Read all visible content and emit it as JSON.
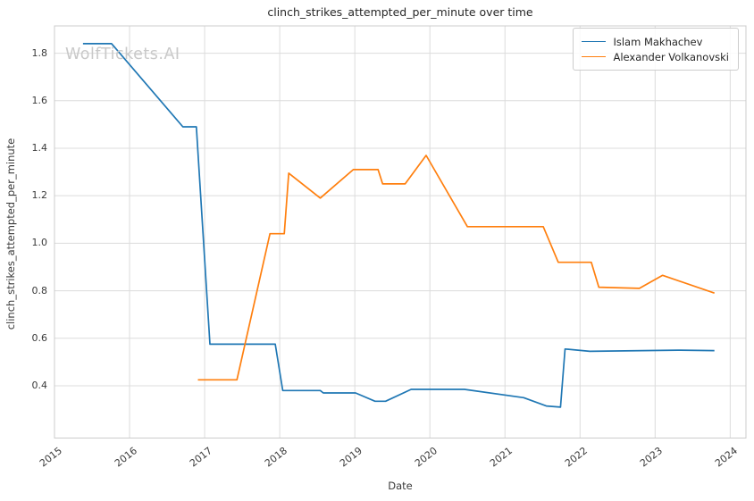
{
  "title": "clinch_strikes_attempted_per_minute over time",
  "watermark": "WolfTickets.AI",
  "colors": {
    "background": "#ffffff",
    "grid": "#dcdcdc",
    "spine": "#cccccc",
    "tick_text": "#3a3a3a",
    "title_text": "#262626",
    "watermark_text": "#c9c9c9",
    "series_blue": "#1f77b4",
    "series_orange": "#ff7f0e"
  },
  "chart_data": {
    "type": "line",
    "title": "clinch_strikes_attempted_per_minute over time",
    "xlabel": "Date",
    "ylabel": "clinch_strikes_attempted_per_minute",
    "grid": true,
    "legend_position": "upper right",
    "x_ticks": [
      "2015",
      "2016",
      "2017",
      "2018",
      "2019",
      "2020",
      "2021",
      "2022",
      "2023",
      "2024"
    ],
    "y_ticks": [
      "0.4",
      "0.6",
      "0.8",
      "1.0",
      "1.2",
      "1.4",
      "1.6",
      "1.8"
    ],
    "xlim": [
      2015.0,
      2024.21
    ],
    "ylim": [
      0.18,
      1.915
    ],
    "series": [
      {
        "name": "Islam Makhachev",
        "color": "#1f77b4",
        "points": [
          [
            2015.38,
            1.84
          ],
          [
            2015.76,
            1.84
          ],
          [
            2016.71,
            1.49
          ],
          [
            2016.89,
            1.49
          ],
          [
            2017.07,
            0.575
          ],
          [
            2017.94,
            0.575
          ],
          [
            2018.04,
            0.38
          ],
          [
            2018.54,
            0.38
          ],
          [
            2018.58,
            0.37
          ],
          [
            2019.01,
            0.37
          ],
          [
            2019.27,
            0.335
          ],
          [
            2019.41,
            0.335
          ],
          [
            2019.75,
            0.385
          ],
          [
            2020.46,
            0.385
          ],
          [
            2021.25,
            0.35
          ],
          [
            2021.55,
            0.315
          ],
          [
            2021.74,
            0.31
          ],
          [
            2021.8,
            0.555
          ],
          [
            2022.13,
            0.545
          ],
          [
            2023.3,
            0.55
          ],
          [
            2023.79,
            0.548
          ]
        ]
      },
      {
        "name": "Alexander Volkanovski",
        "color": "#ff7f0e",
        "points": [
          [
            2016.91,
            0.425
          ],
          [
            2017.43,
            0.425
          ],
          [
            2017.87,
            1.04
          ],
          [
            2018.06,
            1.04
          ],
          [
            2018.12,
            1.295
          ],
          [
            2018.54,
            1.19
          ],
          [
            2018.98,
            1.31
          ],
          [
            2019.31,
            1.31
          ],
          [
            2019.37,
            1.25
          ],
          [
            2019.67,
            1.25
          ],
          [
            2019.95,
            1.37
          ],
          [
            2020.5,
            1.07
          ],
          [
            2021.51,
            1.07
          ],
          [
            2021.71,
            0.92
          ],
          [
            2022.15,
            0.92
          ],
          [
            2022.25,
            0.815
          ],
          [
            2022.79,
            0.81
          ],
          [
            2023.1,
            0.865
          ],
          [
            2023.79,
            0.79
          ]
        ]
      }
    ]
  }
}
